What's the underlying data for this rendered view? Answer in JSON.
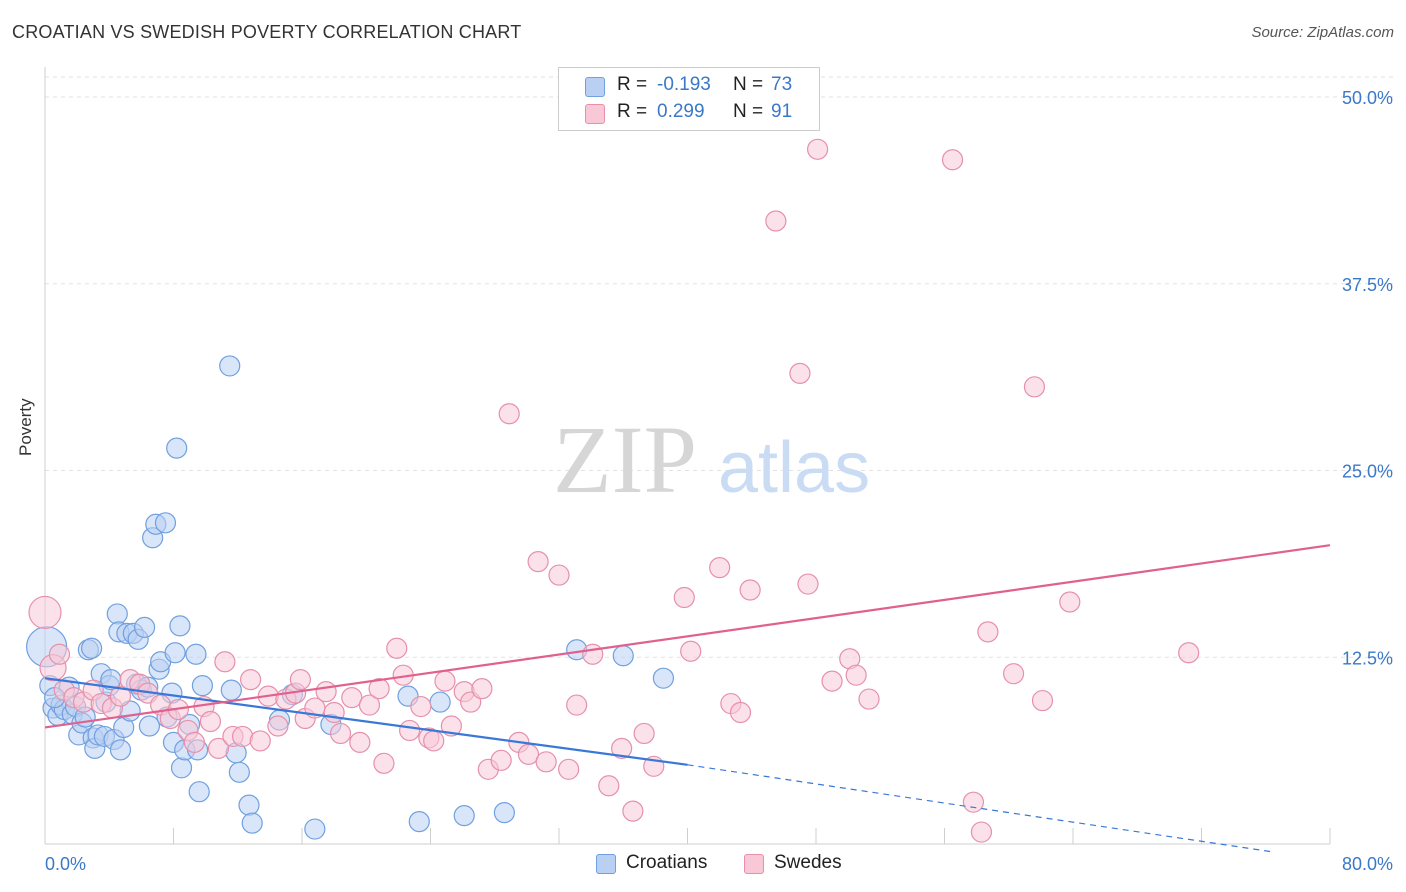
{
  "header": {
    "title": "CROATIAN VS SWEDISH POVERTY CORRELATION CHART",
    "source": "Source: ZipAtlas.com"
  },
  "watermark": {
    "zip": "ZIP",
    "atlas": "atlas"
  },
  "legend": {
    "r_label": "R =",
    "n_label": "N =",
    "entries": [
      {
        "r": "-0.193",
        "n": "73",
        "color": "#6fa0e0",
        "fill": "#b9d0f3"
      },
      {
        "r": "0.299",
        "n": "91",
        "color": "#e690ab",
        "fill": "#f8c8d7"
      }
    ]
  },
  "bottom_legend": [
    {
      "label": "Croatians",
      "fill": "#b9d0f3",
      "color": "#6fa0e0"
    },
    {
      "label": "Swedes",
      "fill": "#f8c8d7",
      "color": "#e690ab"
    }
  ],
  "chart_data": {
    "type": "scatter",
    "title": "CROATIAN VS SWEDISH POVERTY CORRELATION CHART",
    "xlabel": "",
    "ylabel": "Poverty",
    "xlim": [
      0,
      80
    ],
    "ylim": [
      0,
      50
    ],
    "x_tick_labels": [
      "0.0%",
      "80.0%"
    ],
    "y_ticks": [
      12.5,
      25.0,
      37.5,
      50.0
    ],
    "y_tick_labels": [
      "12.5%",
      "25.0%",
      "37.5%",
      "50.0%"
    ],
    "grid": true,
    "legend_position": "top-center",
    "series": [
      {
        "name": "Croatians",
        "color": "#3a78d8",
        "fill": "#b9d0f3",
        "stroke": "#6fa0e0",
        "trend": {
          "x0": 0,
          "y0": 11.1,
          "x1": 40,
          "y1": 5.3,
          "dash_to_x": 80,
          "dash_to_y": -0.5
        },
        "points": [
          [
            0.1,
            13.2,
            20
          ],
          [
            0.3,
            10.6,
            10
          ],
          [
            0.5,
            9.1,
            10
          ],
          [
            0.8,
            8.6,
            10
          ],
          [
            1.0,
            9.3,
            10
          ],
          [
            1.2,
            9.0,
            10
          ],
          [
            1.5,
            10.5,
            10
          ],
          [
            1.7,
            8.7,
            10
          ],
          [
            1.9,
            9.2,
            10
          ],
          [
            2.1,
            7.3,
            10
          ],
          [
            2.3,
            8.1,
            10
          ],
          [
            2.5,
            8.5,
            10
          ],
          [
            2.7,
            13.0,
            10
          ],
          [
            2.9,
            13.1,
            10
          ],
          [
            3.0,
            7.1,
            10
          ],
          [
            3.1,
            6.4,
            10
          ],
          [
            3.3,
            7.3,
            10
          ],
          [
            3.5,
            11.4,
            10
          ],
          [
            3.7,
            7.2,
            10
          ],
          [
            3.8,
            9.5,
            10
          ],
          [
            4.0,
            10.6,
            10
          ],
          [
            4.1,
            11.0,
            10
          ],
          [
            4.3,
            7.0,
            10
          ],
          [
            4.5,
            15.4,
            10
          ],
          [
            4.6,
            14.2,
            10
          ],
          [
            4.7,
            6.3,
            10
          ],
          [
            4.9,
            7.8,
            10
          ],
          [
            5.1,
            14.1,
            10
          ],
          [
            5.3,
            8.9,
            10
          ],
          [
            5.5,
            14.1,
            10
          ],
          [
            5.7,
            10.7,
            10
          ],
          [
            5.8,
            13.7,
            10
          ],
          [
            6.0,
            10.3,
            10
          ],
          [
            6.2,
            14.5,
            10
          ],
          [
            6.4,
            10.5,
            10
          ],
          [
            6.5,
            7.9,
            10
          ],
          [
            6.7,
            20.5,
            10
          ],
          [
            6.9,
            21.4,
            10
          ],
          [
            7.1,
            11.7,
            10
          ],
          [
            7.2,
            12.2,
            10
          ],
          [
            7.5,
            21.5,
            10
          ],
          [
            7.6,
            8.5,
            10
          ],
          [
            7.9,
            10.1,
            10
          ],
          [
            8.0,
            6.8,
            10
          ],
          [
            8.1,
            12.8,
            10
          ],
          [
            8.2,
            26.5,
            10
          ],
          [
            8.4,
            14.6,
            10
          ],
          [
            8.5,
            5.1,
            10
          ],
          [
            8.7,
            6.3,
            10
          ],
          [
            9.0,
            8.0,
            10
          ],
          [
            9.4,
            12.7,
            10
          ],
          [
            9.5,
            6.3,
            10
          ],
          [
            9.6,
            3.5,
            10
          ],
          [
            9.8,
            10.6,
            10
          ],
          [
            11.5,
            32.0,
            10
          ],
          [
            11.6,
            10.3,
            10
          ],
          [
            11.9,
            6.1,
            10
          ],
          [
            12.1,
            4.8,
            10
          ],
          [
            12.7,
            2.6,
            10
          ],
          [
            12.9,
            1.4,
            10
          ],
          [
            14.6,
            8.3,
            10
          ],
          [
            15.4,
            10.0,
            10
          ],
          [
            16.8,
            1.0,
            10
          ],
          [
            17.8,
            8.0,
            10
          ],
          [
            22.6,
            9.9,
            10
          ],
          [
            23.3,
            1.5,
            10
          ],
          [
            24.6,
            9.5,
            10
          ],
          [
            26.1,
            1.9,
            10
          ],
          [
            28.6,
            2.1,
            10
          ],
          [
            33.1,
            13.0,
            10
          ],
          [
            36.0,
            12.6,
            10
          ],
          [
            38.5,
            11.1,
            10
          ],
          [
            0.6,
            9.8,
            10
          ]
        ]
      },
      {
        "name": "Swedes",
        "color": "#e0608f",
        "fill": "#f8c8d7",
        "stroke": "#e690ab",
        "trend": {
          "x0": 0,
          "y0": 7.8,
          "x1": 80,
          "y1": 20.0
        },
        "points": [
          [
            0.0,
            15.5,
            16
          ],
          [
            0.5,
            11.8,
            13
          ],
          [
            1.2,
            10.3,
            10
          ],
          [
            1.8,
            9.8,
            10
          ],
          [
            2.4,
            9.5,
            10
          ],
          [
            3.0,
            10.3,
            10
          ],
          [
            3.5,
            9.4,
            10
          ],
          [
            4.2,
            9.1,
            10
          ],
          [
            4.7,
            9.9,
            10
          ],
          [
            5.3,
            11.0,
            10
          ],
          [
            5.9,
            10.7,
            10
          ],
          [
            6.4,
            10.1,
            10
          ],
          [
            7.2,
            9.3,
            10
          ],
          [
            7.8,
            8.4,
            10
          ],
          [
            8.3,
            9.0,
            10
          ],
          [
            8.9,
            7.6,
            10
          ],
          [
            9.3,
            6.8,
            10
          ],
          [
            9.9,
            9.2,
            10
          ],
          [
            10.3,
            8.2,
            10
          ],
          [
            10.8,
            6.4,
            10
          ],
          [
            11.2,
            12.2,
            10
          ],
          [
            11.7,
            7.2,
            10
          ],
          [
            12.3,
            7.2,
            10
          ],
          [
            12.8,
            11.0,
            10
          ],
          [
            13.4,
            6.9,
            10
          ],
          [
            13.9,
            9.9,
            10
          ],
          [
            14.5,
            7.9,
            10
          ],
          [
            15.0,
            9.7,
            10
          ],
          [
            15.6,
            10.1,
            10
          ],
          [
            15.9,
            11.0,
            10
          ],
          [
            16.2,
            8.4,
            10
          ],
          [
            16.8,
            9.1,
            10
          ],
          [
            17.5,
            10.2,
            10
          ],
          [
            18.0,
            8.8,
            10
          ],
          [
            18.4,
            7.4,
            10
          ],
          [
            19.1,
            9.8,
            10
          ],
          [
            19.6,
            6.8,
            10
          ],
          [
            20.2,
            9.3,
            10
          ],
          [
            20.8,
            10.4,
            10
          ],
          [
            21.1,
            5.4,
            10
          ],
          [
            21.9,
            13.1,
            10
          ],
          [
            22.3,
            11.3,
            10
          ],
          [
            22.7,
            7.6,
            10
          ],
          [
            23.4,
            9.2,
            10
          ],
          [
            23.9,
            7.1,
            10
          ],
          [
            24.2,
            6.9,
            10
          ],
          [
            24.9,
            10.9,
            10
          ],
          [
            25.3,
            7.9,
            10
          ],
          [
            26.1,
            10.2,
            10
          ],
          [
            26.5,
            9.5,
            10
          ],
          [
            27.2,
            10.4,
            10
          ],
          [
            27.6,
            5.0,
            10
          ],
          [
            28.4,
            5.6,
            10
          ],
          [
            28.9,
            28.8,
            10
          ],
          [
            29.5,
            6.8,
            10
          ],
          [
            30.1,
            6.0,
            10
          ],
          [
            30.7,
            18.9,
            10
          ],
          [
            31.2,
            5.5,
            10
          ],
          [
            32.0,
            18.0,
            10
          ],
          [
            32.6,
            5.0,
            10
          ],
          [
            33.1,
            9.3,
            10
          ],
          [
            34.1,
            12.7,
            10
          ],
          [
            35.1,
            3.9,
            10
          ],
          [
            35.9,
            6.4,
            10
          ],
          [
            36.6,
            2.2,
            10
          ],
          [
            37.3,
            7.4,
            10
          ],
          [
            37.9,
            5.2,
            10
          ],
          [
            39.8,
            16.5,
            10
          ],
          [
            40.2,
            12.9,
            10
          ],
          [
            42.0,
            18.5,
            10
          ],
          [
            42.7,
            9.4,
            10
          ],
          [
            43.3,
            8.8,
            10
          ],
          [
            43.9,
            17.0,
            10
          ],
          [
            45.5,
            41.7,
            10
          ],
          [
            47.0,
            31.5,
            10
          ],
          [
            47.5,
            17.4,
            10
          ],
          [
            48.1,
            46.5,
            10
          ],
          [
            49.0,
            10.9,
            10
          ],
          [
            50.1,
            12.4,
            10
          ],
          [
            50.5,
            11.3,
            10
          ],
          [
            51.3,
            9.7,
            10
          ],
          [
            56.5,
            45.8,
            10
          ],
          [
            57.8,
            2.8,
            10
          ],
          [
            58.3,
            0.8,
            10
          ],
          [
            58.7,
            14.2,
            10
          ],
          [
            60.3,
            11.4,
            10
          ],
          [
            61.6,
            30.6,
            10
          ],
          [
            62.1,
            9.6,
            10
          ],
          [
            63.8,
            16.2,
            10
          ],
          [
            71.2,
            12.8,
            10
          ],
          [
            0.9,
            12.7,
            10
          ]
        ]
      }
    ]
  }
}
